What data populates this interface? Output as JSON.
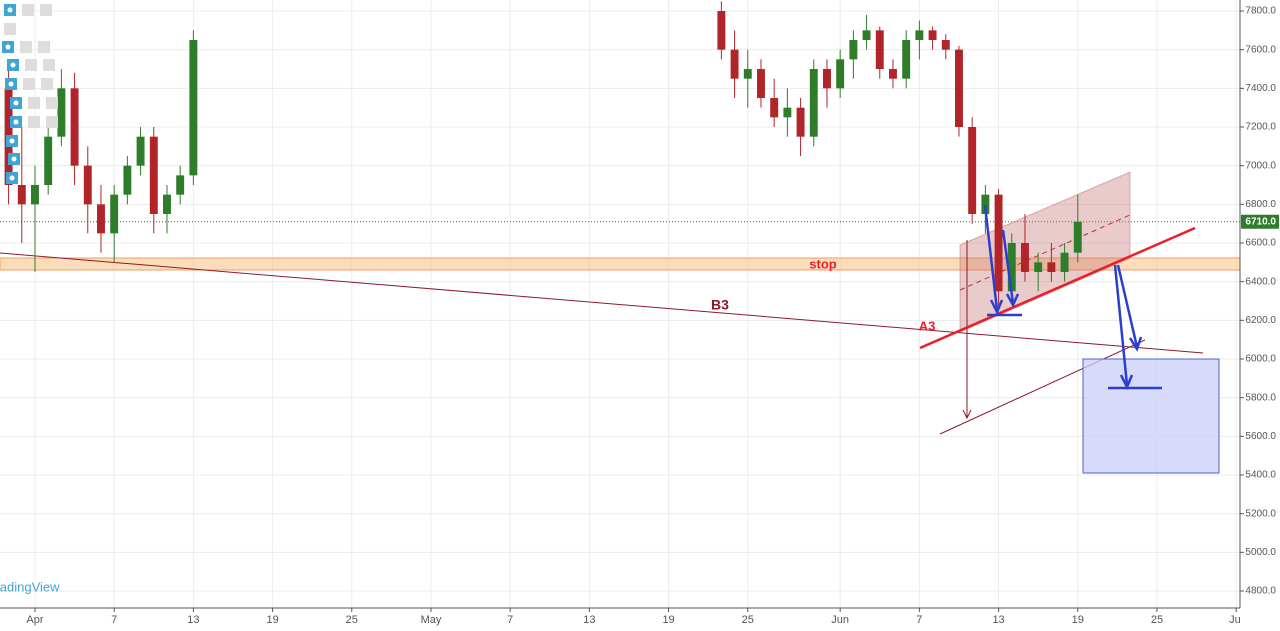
{
  "chart_data": {
    "type": "candlestick",
    "watermark": "TradingView",
    "annotations": [
      "stop",
      "B3",
      "A3"
    ],
    "last_price": {
      "value": 6710,
      "label": "6710.0"
    },
    "up_color": "#2f7d2a",
    "down_color": "#b0242a",
    "grid": true,
    "xlim": [
      -2.65,
      91.29
    ],
    "ylim": [
      4712,
      7857
    ],
    "xticks": [
      {
        "value": 0,
        "label": "Apr"
      },
      {
        "value": 6,
        "label": "7"
      },
      {
        "value": 12,
        "label": "13"
      },
      {
        "value": 18,
        "label": "19"
      },
      {
        "value": 24,
        "label": "25"
      },
      {
        "value": 30,
        "label": "May"
      },
      {
        "value": 36,
        "label": "7"
      },
      {
        "value": 42,
        "label": "13"
      },
      {
        "value": 48,
        "label": "19"
      },
      {
        "value": 54,
        "label": "25"
      },
      {
        "value": 61,
        "label": "Jun"
      },
      {
        "value": 67,
        "label": "7"
      },
      {
        "value": 73,
        "label": "13"
      },
      {
        "value": 79,
        "label": "19"
      },
      {
        "value": 85,
        "label": "25"
      },
      {
        "value": 91,
        "label": "Jul"
      }
    ],
    "yticks": [
      {
        "value": 4800,
        "label": "4800.0"
      },
      {
        "value": 5000,
        "label": "5000.0"
      },
      {
        "value": 5200,
        "label": "5200.0"
      },
      {
        "value": 5400,
        "label": "5400.0"
      },
      {
        "value": 5600,
        "label": "5600.0"
      },
      {
        "value": 5800,
        "label": "5800.0"
      },
      {
        "value": 6000,
        "label": "6000.0"
      },
      {
        "value": 6200,
        "label": "6200.0"
      },
      {
        "value": 6400,
        "label": "6400.0"
      },
      {
        "value": 6600,
        "label": "6600.0"
      },
      {
        "value": 6800,
        "label": "6800.0"
      },
      {
        "value": 7000,
        "label": "7000.0"
      },
      {
        "value": 7200,
        "label": "7200.0"
      },
      {
        "value": 7400,
        "label": "7400.0"
      },
      {
        "value": 7600,
        "label": "7600.0"
      },
      {
        "value": 7800,
        "label": "7800.0"
      }
    ],
    "ohlc": {
      "x": [
        -2,
        -1,
        0,
        1,
        2,
        3,
        4,
        5,
        6,
        7,
        8,
        9,
        10,
        11,
        12,
        52,
        53,
        54,
        55,
        56,
        57,
        58,
        59,
        60,
        61,
        62,
        63,
        64,
        65,
        66,
        67,
        68,
        69,
        70,
        71,
        72,
        73,
        74,
        75,
        76,
        77,
        78,
        79
      ],
      "open": [
        7400,
        6900,
        6800,
        6900,
        7150,
        7400,
        7000,
        6800,
        6650,
        6850,
        7000,
        7150,
        6750,
        6850,
        6950,
        7800,
        7600,
        7450,
        7500,
        7350,
        7250,
        7300,
        7150,
        7500,
        7400,
        7550,
        7650,
        7700,
        7500,
        7450,
        7650,
        7700,
        7650,
        7600,
        7200,
        6750,
        6850,
        6350,
        6600,
        6450,
        6500,
        6450,
        6550
      ],
      "high": [
        7500,
        7200,
        7000,
        7250,
        7500,
        7480,
        7100,
        6900,
        6900,
        7050,
        7200,
        7200,
        6900,
        7000,
        7700,
        7850,
        7700,
        7600,
        7550,
        7450,
        7400,
        7350,
        7550,
        7550,
        7600,
        7700,
        7780,
        7720,
        7550,
        7700,
        7750,
        7720,
        7680,
        7620,
        7250,
        6900,
        6880,
        6650,
        6750,
        6550,
        6600,
        6600,
        6850
      ],
      "low": [
        6800,
        6600,
        6450,
        6850,
        7100,
        6900,
        6650,
        6550,
        6500,
        6800,
        6950,
        6650,
        6650,
        6800,
        6900,
        7550,
        7350,
        7300,
        7300,
        7200,
        7150,
        7050,
        7100,
        7300,
        7350,
        7450,
        7600,
        7450,
        7400,
        7400,
        7550,
        7600,
        7550,
        7150,
        6700,
        6650,
        6250,
        6300,
        6400,
        6350,
        6400,
        6400,
        6500
      ],
      "close": [
        6900,
        6800,
        6900,
        7150,
        7400,
        7000,
        6800,
        6650,
        6850,
        7000,
        7150,
        6750,
        6850,
        6950,
        7650,
        7600,
        7450,
        7500,
        7350,
        7250,
        7300,
        7150,
        7500,
        7400,
        7550,
        7650,
        7700,
        7500,
        7450,
        7650,
        7700,
        7650,
        7600,
        7200,
        6750,
        6850,
        6350,
        6600,
        6450,
        6500,
        6450,
        6550,
        6710
      ]
    }
  }
}
